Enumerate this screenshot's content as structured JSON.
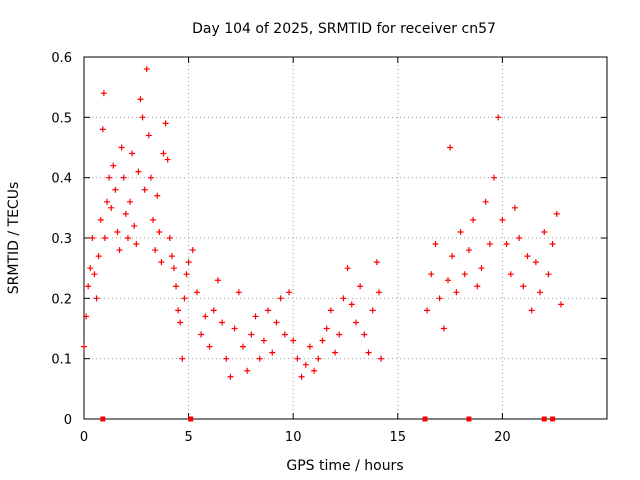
{
  "chart_data": {
    "type": "scatter",
    "title": "Day 104 of 2025, SRMTID for receiver cn57",
    "xlabel": "GPS time / hours",
    "ylabel": "SRMTID / TECUs",
    "xlim": [
      0,
      25
    ],
    "ylim": [
      0,
      0.6
    ],
    "xticks": [
      "0",
      "5",
      "10",
      "15",
      "20"
    ],
    "yticks": [
      "0",
      "0.1",
      "0.2",
      "0.3",
      "0.4",
      "0.5",
      "0.6"
    ],
    "grid": true,
    "marker": "plus",
    "color": "#ff0000",
    "series": [
      {
        "name": "SRMTID",
        "points": [
          [
            0.0,
            0.12
          ],
          [
            0.1,
            0.17
          ],
          [
            0.2,
            0.22
          ],
          [
            0.3,
            0.25
          ],
          [
            0.4,
            0.3
          ],
          [
            0.5,
            0.24
          ],
          [
            0.6,
            0.2
          ],
          [
            0.7,
            0.27
          ],
          [
            0.8,
            0.33
          ],
          [
            0.9,
            0.48
          ],
          [
            0.95,
            0.54
          ],
          [
            1.0,
            0.3
          ],
          [
            1.1,
            0.36
          ],
          [
            1.2,
            0.4
          ],
          [
            1.3,
            0.35
          ],
          [
            1.4,
            0.42
          ],
          [
            1.5,
            0.38
          ],
          [
            1.6,
            0.31
          ],
          [
            1.7,
            0.28
          ],
          [
            1.8,
            0.45
          ],
          [
            1.9,
            0.4
          ],
          [
            2.0,
            0.34
          ],
          [
            2.1,
            0.3
          ],
          [
            2.2,
            0.36
          ],
          [
            2.3,
            0.44
          ],
          [
            2.4,
            0.32
          ],
          [
            2.5,
            0.29
          ],
          [
            2.6,
            0.41
          ],
          [
            2.7,
            0.53
          ],
          [
            2.8,
            0.5
          ],
          [
            2.9,
            0.38
          ],
          [
            3.0,
            0.58
          ],
          [
            3.1,
            0.47
          ],
          [
            3.2,
            0.4
          ],
          [
            3.3,
            0.33
          ],
          [
            3.4,
            0.28
          ],
          [
            3.5,
            0.37
          ],
          [
            3.6,
            0.31
          ],
          [
            3.7,
            0.26
          ],
          [
            3.8,
            0.44
          ],
          [
            3.9,
            0.49
          ],
          [
            4.0,
            0.43
          ],
          [
            4.1,
            0.3
          ],
          [
            4.2,
            0.27
          ],
          [
            4.3,
            0.25
          ],
          [
            4.4,
            0.22
          ],
          [
            4.5,
            0.18
          ],
          [
            4.6,
            0.16
          ],
          [
            4.7,
            0.1
          ],
          [
            4.8,
            0.2
          ],
          [
            4.9,
            0.24
          ],
          [
            5.0,
            0.26
          ],
          [
            5.2,
            0.28
          ],
          [
            5.4,
            0.21
          ],
          [
            5.6,
            0.14
          ],
          [
            5.8,
            0.17
          ],
          [
            6.0,
            0.12
          ],
          [
            6.2,
            0.18
          ],
          [
            6.4,
            0.23
          ],
          [
            6.6,
            0.16
          ],
          [
            6.8,
            0.1
          ],
          [
            7.0,
            0.07
          ],
          [
            7.2,
            0.15
          ],
          [
            7.4,
            0.21
          ],
          [
            7.6,
            0.12
          ],
          [
            7.8,
            0.08
          ],
          [
            8.0,
            0.14
          ],
          [
            8.2,
            0.17
          ],
          [
            8.4,
            0.1
          ],
          [
            8.6,
            0.13
          ],
          [
            8.8,
            0.18
          ],
          [
            9.0,
            0.11
          ],
          [
            9.2,
            0.16
          ],
          [
            9.4,
            0.2
          ],
          [
            9.6,
            0.14
          ],
          [
            9.8,
            0.21
          ],
          [
            10.0,
            0.13
          ],
          [
            10.2,
            0.1
          ],
          [
            10.4,
            0.07
          ],
          [
            10.6,
            0.09
          ],
          [
            10.8,
            0.12
          ],
          [
            11.0,
            0.08
          ],
          [
            11.2,
            0.1
          ],
          [
            11.4,
            0.13
          ],
          [
            11.6,
            0.15
          ],
          [
            11.8,
            0.18
          ],
          [
            12.0,
            0.11
          ],
          [
            12.2,
            0.14
          ],
          [
            12.4,
            0.2
          ],
          [
            12.6,
            0.25
          ],
          [
            12.8,
            0.19
          ],
          [
            13.0,
            0.16
          ],
          [
            13.2,
            0.22
          ],
          [
            13.4,
            0.14
          ],
          [
            13.6,
            0.11
          ],
          [
            13.8,
            0.18
          ],
          [
            14.0,
            0.26
          ],
          [
            14.1,
            0.21
          ],
          [
            14.2,
            0.1
          ],
          [
            16.4,
            0.18
          ],
          [
            16.6,
            0.24
          ],
          [
            16.8,
            0.29
          ],
          [
            17.0,
            0.2
          ],
          [
            17.2,
            0.15
          ],
          [
            17.4,
            0.23
          ],
          [
            17.5,
            0.45
          ],
          [
            17.6,
            0.27
          ],
          [
            17.8,
            0.21
          ],
          [
            18.0,
            0.31
          ],
          [
            18.2,
            0.24
          ],
          [
            18.4,
            0.28
          ],
          [
            18.6,
            0.33
          ],
          [
            18.8,
            0.22
          ],
          [
            19.0,
            0.25
          ],
          [
            19.2,
            0.36
          ],
          [
            19.4,
            0.29
          ],
          [
            19.6,
            0.4
          ],
          [
            19.8,
            0.5
          ],
          [
            20.0,
            0.33
          ],
          [
            20.2,
            0.29
          ],
          [
            20.4,
            0.24
          ],
          [
            20.6,
            0.35
          ],
          [
            20.8,
            0.3
          ],
          [
            21.0,
            0.22
          ],
          [
            21.2,
            0.27
          ],
          [
            21.4,
            0.18
          ],
          [
            21.6,
            0.26
          ],
          [
            21.8,
            0.21
          ],
          [
            22.0,
            0.31
          ],
          [
            22.2,
            0.24
          ],
          [
            22.4,
            0.29
          ],
          [
            22.6,
            0.34
          ],
          [
            22.8,
            0.19
          ]
        ]
      }
    ],
    "baseline_points": [
      [
        0.9,
        0.0
      ],
      [
        5.1,
        0.0
      ],
      [
        16.3,
        0.0
      ],
      [
        18.4,
        0.0
      ],
      [
        22.0,
        0.0
      ],
      [
        22.4,
        0.0
      ]
    ]
  }
}
